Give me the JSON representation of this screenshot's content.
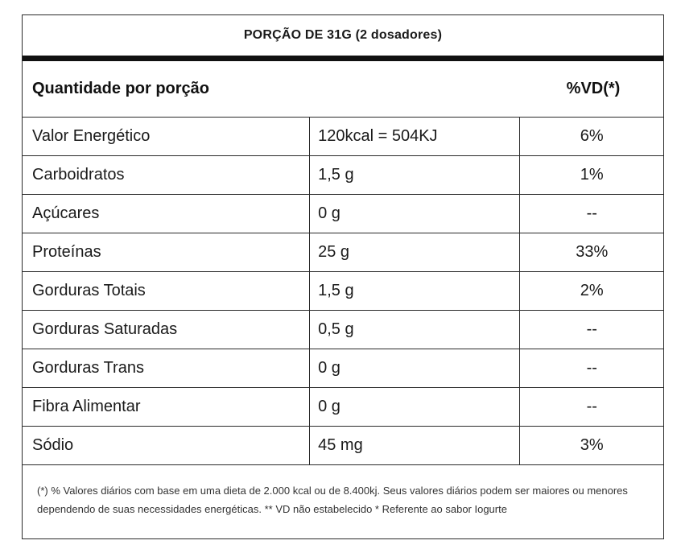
{
  "serving_title": "PORÇÃO DE 31G (2 dosadores)",
  "header": {
    "quantity_label": "Quantidade por porção",
    "vd_label": "%VD(*)"
  },
  "rows": [
    {
      "name": "Valor Energético",
      "amount": "120kcal = 504KJ",
      "vd": "6%"
    },
    {
      "name": "Carboidratos",
      "amount": "1,5 g",
      "vd": "1%"
    },
    {
      "name": "Açúcares",
      "amount": "0 g",
      "vd": "--"
    },
    {
      "name": "Proteínas",
      "amount": "25 g",
      "vd": "33%"
    },
    {
      "name": "Gorduras Totais",
      "amount": "1,5 g",
      "vd": "2%"
    },
    {
      "name": "Gorduras Saturadas",
      "amount": "0,5 g",
      "vd": "--"
    },
    {
      "name": "Gorduras Trans",
      "amount": "0 g",
      "vd": "--"
    },
    {
      "name": "Fibra Alimentar",
      "amount": "0 g",
      "vd": "--"
    },
    {
      "name": "Sódio",
      "amount": "45 mg",
      "vd": "3%"
    }
  ],
  "footnote": "(*) % Valores diários com base em uma dieta de 2.000 kcal ou de 8.400kj. Seus valores diários podem ser maiores ou menores dependendo de suas necessidades energéticas. ** VD não estabelecido * Referente ao sabor Iogurte"
}
